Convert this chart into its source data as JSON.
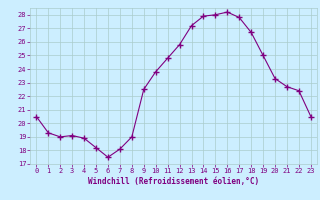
{
  "x": [
    0,
    1,
    2,
    3,
    4,
    5,
    6,
    7,
    8,
    9,
    10,
    11,
    12,
    13,
    14,
    15,
    16,
    17,
    18,
    19,
    20,
    21,
    22,
    23
  ],
  "y": [
    20.5,
    19.3,
    19.0,
    19.1,
    18.9,
    18.2,
    17.5,
    18.1,
    19.0,
    22.5,
    23.8,
    24.8,
    25.8,
    27.2,
    27.9,
    28.0,
    28.2,
    27.8,
    26.7,
    25.0,
    23.3,
    22.7,
    22.4,
    20.5
  ],
  "line_color": "#800080",
  "marker": "+",
  "marker_size": 4,
  "marker_linewidth": 1.0,
  "bg_color": "#cceeff",
  "grid_color": "#aacccc",
  "xlabel": "Windchill (Refroidissement éolien,°C)",
  "tick_color": "#800080",
  "ylim": [
    17,
    28.5
  ],
  "yticks": [
    17,
    18,
    19,
    20,
    21,
    22,
    23,
    24,
    25,
    26,
    27,
    28
  ],
  "xticks": [
    0,
    1,
    2,
    3,
    4,
    5,
    6,
    7,
    8,
    9,
    10,
    11,
    12,
    13,
    14,
    15,
    16,
    17,
    18,
    19,
    20,
    21,
    22,
    23
  ]
}
